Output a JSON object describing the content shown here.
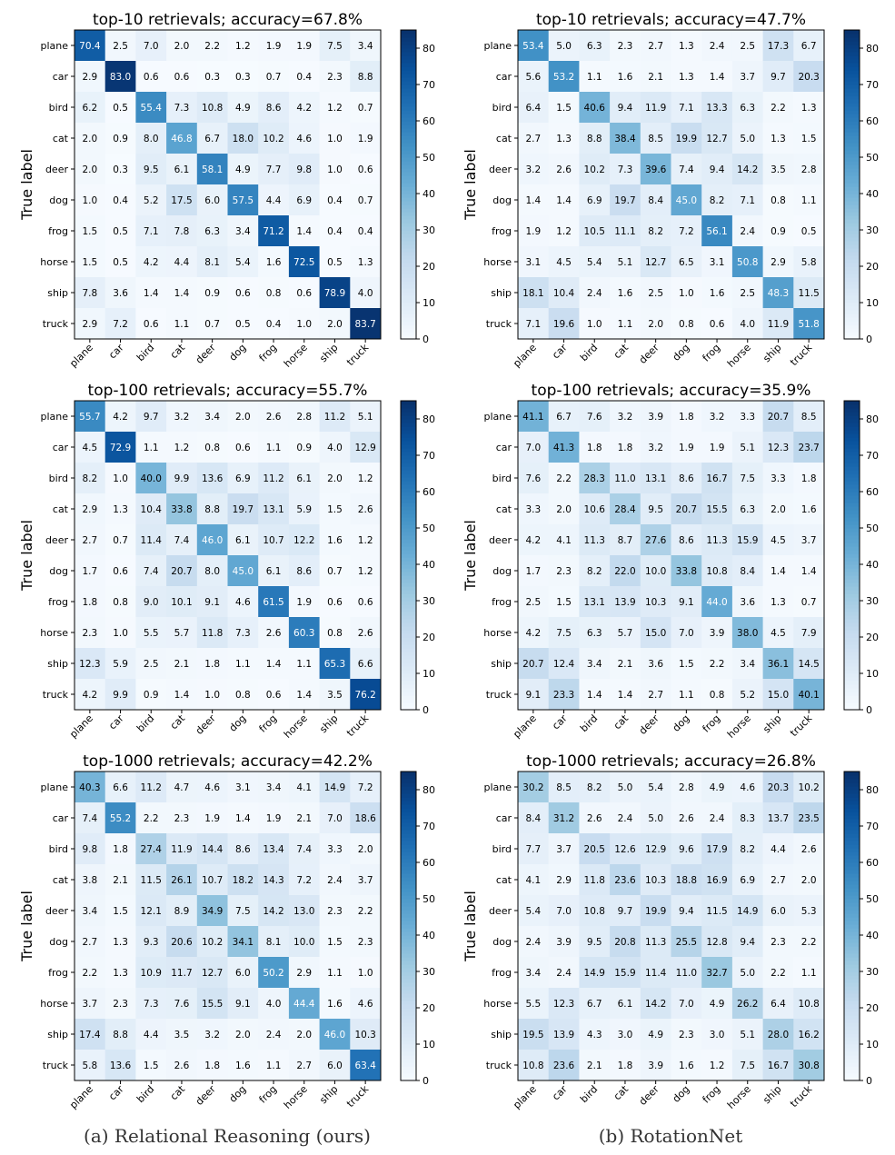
{
  "labels": [
    "plane",
    "car",
    "bird",
    "cat",
    "deer",
    "dog",
    "frog",
    "horse",
    "ship",
    "truck"
  ],
  "ylabel": "True label",
  "colorbar": {
    "min": 0,
    "max": 85,
    "ticks": [
      0,
      10,
      20,
      30,
      40,
      50,
      60,
      70,
      80
    ]
  },
  "colormap": [
    "#f7fbff",
    "#deebf7",
    "#c6dbef",
    "#9ecae1",
    "#6baed6",
    "#4292c6",
    "#2171b5",
    "#08519c",
    "#08306b"
  ],
  "captions": {
    "a": "(a) Relational Reasoning (ours)",
    "b": "(b) RotationNet"
  },
  "chart_data": [
    {
      "type": "heatmap",
      "title": "top-10 retrievals; accuracy=67.8%",
      "rows": [
        [
          70.4,
          2.5,
          7.0,
          2.0,
          2.2,
          1.2,
          1.9,
          1.9,
          7.5,
          3.4
        ],
        [
          2.9,
          83.0,
          0.6,
          0.6,
          0.3,
          0.3,
          0.7,
          0.4,
          2.3,
          8.8
        ],
        [
          6.2,
          0.5,
          55.4,
          7.3,
          10.8,
          4.9,
          8.6,
          4.2,
          1.2,
          0.7
        ],
        [
          2.0,
          0.9,
          8.0,
          46.8,
          6.7,
          18.0,
          10.2,
          4.6,
          1.0,
          1.9
        ],
        [
          2.0,
          0.3,
          9.5,
          6.1,
          58.1,
          4.9,
          7.7,
          9.8,
          1.0,
          0.6
        ],
        [
          1.0,
          0.4,
          5.2,
          17.5,
          6.0,
          57.5,
          4.4,
          6.9,
          0.4,
          0.7
        ],
        [
          1.5,
          0.5,
          7.1,
          7.8,
          6.3,
          3.4,
          71.2,
          1.4,
          0.4,
          0.4
        ],
        [
          1.5,
          0.5,
          4.2,
          4.4,
          8.1,
          5.4,
          1.6,
          72.5,
          0.5,
          1.3
        ],
        [
          7.8,
          3.6,
          1.4,
          1.4,
          0.9,
          0.6,
          0.8,
          0.6,
          78.9,
          4.0
        ],
        [
          2.9,
          7.2,
          0.6,
          1.1,
          0.7,
          0.5,
          0.4,
          1.0,
          2.0,
          83.7
        ]
      ]
    },
    {
      "type": "heatmap",
      "title": "top-10 retrievals; accuracy=47.7%",
      "rows": [
        [
          53.4,
          5.0,
          6.3,
          2.3,
          2.7,
          1.3,
          2.4,
          2.5,
          17.3,
          6.7
        ],
        [
          5.6,
          53.2,
          1.1,
          1.6,
          2.1,
          1.3,
          1.4,
          3.7,
          9.7,
          20.3
        ],
        [
          6.4,
          1.5,
          40.6,
          9.4,
          11.9,
          7.1,
          13.3,
          6.3,
          2.2,
          1.3
        ],
        [
          2.7,
          1.3,
          8.8,
          38.4,
          8.5,
          19.9,
          12.7,
          5.0,
          1.3,
          1.5
        ],
        [
          3.2,
          2.6,
          10.2,
          7.3,
          39.6,
          7.4,
          9.4,
          14.2,
          3.5,
          2.8
        ],
        [
          1.4,
          1.4,
          6.9,
          19.7,
          8.4,
          45.0,
          8.2,
          7.1,
          0.8,
          1.1
        ],
        [
          1.9,
          1.2,
          10.5,
          11.1,
          8.2,
          7.2,
          56.1,
          2.4,
          0.9,
          0.5
        ],
        [
          3.1,
          4.5,
          5.4,
          5.1,
          12.7,
          6.5,
          3.1,
          50.8,
          2.9,
          5.8
        ],
        [
          18.1,
          10.4,
          2.4,
          1.6,
          2.5,
          1.0,
          1.6,
          2.5,
          48.3,
          11.5
        ],
        [
          7.1,
          19.6,
          1.0,
          1.1,
          2.0,
          0.8,
          0.6,
          4.0,
          11.9,
          51.8
        ]
      ]
    },
    {
      "type": "heatmap",
      "title": "top-100 retrievals; accuracy=55.7%",
      "rows": [
        [
          55.7,
          4.2,
          9.7,
          3.2,
          3.4,
          2.0,
          2.6,
          2.8,
          11.2,
          5.1
        ],
        [
          4.5,
          72.9,
          1.1,
          1.2,
          0.8,
          0.6,
          1.1,
          0.9,
          4.0,
          12.9
        ],
        [
          8.2,
          1.0,
          40.0,
          9.9,
          13.6,
          6.9,
          11.2,
          6.1,
          2.0,
          1.2
        ],
        [
          2.9,
          1.3,
          10.4,
          33.8,
          8.8,
          19.7,
          13.1,
          5.9,
          1.5,
          2.6
        ],
        [
          2.7,
          0.7,
          11.4,
          7.4,
          46.0,
          6.1,
          10.7,
          12.2,
          1.6,
          1.2
        ],
        [
          1.7,
          0.6,
          7.4,
          20.7,
          8.0,
          45.0,
          6.1,
          8.6,
          0.7,
          1.2
        ],
        [
          1.8,
          0.8,
          9.0,
          10.1,
          9.1,
          4.6,
          61.5,
          1.9,
          0.6,
          0.6
        ],
        [
          2.3,
          1.0,
          5.5,
          5.7,
          11.8,
          7.3,
          2.6,
          60.3,
          0.8,
          2.6
        ],
        [
          12.3,
          5.9,
          2.5,
          2.1,
          1.8,
          1.1,
          1.4,
          1.1,
          65.3,
          6.6
        ],
        [
          4.2,
          9.9,
          0.9,
          1.4,
          1.0,
          0.8,
          0.6,
          1.4,
          3.5,
          76.2
        ]
      ]
    },
    {
      "type": "heatmap",
      "title": "top-100 retrievals; accuracy=35.9%",
      "rows": [
        [
          41.1,
          6.7,
          7.6,
          3.2,
          3.9,
          1.8,
          3.2,
          3.3,
          20.7,
          8.5
        ],
        [
          7.0,
          41.3,
          1.8,
          1.8,
          3.2,
          1.9,
          1.9,
          5.1,
          12.3,
          23.7
        ],
        [
          7.6,
          2.2,
          28.3,
          11.0,
          13.1,
          8.6,
          16.7,
          7.5,
          3.3,
          1.8
        ],
        [
          3.3,
          2.0,
          10.6,
          28.4,
          9.5,
          20.7,
          15.5,
          6.3,
          2.0,
          1.6
        ],
        [
          4.2,
          4.1,
          11.3,
          8.7,
          27.6,
          8.6,
          11.3,
          15.9,
          4.5,
          3.7
        ],
        [
          1.7,
          2.3,
          8.2,
          22.0,
          10.0,
          33.8,
          10.8,
          8.4,
          1.4,
          1.4
        ],
        [
          2.5,
          1.5,
          13.1,
          13.9,
          10.3,
          9.1,
          44.0,
          3.6,
          1.3,
          0.7
        ],
        [
          4.2,
          7.5,
          6.3,
          5.7,
          15.0,
          7.0,
          3.9,
          38.0,
          4.5,
          7.9
        ],
        [
          20.7,
          12.4,
          3.4,
          2.1,
          3.6,
          1.5,
          2.2,
          3.4,
          36.1,
          14.5
        ],
        [
          9.1,
          23.3,
          1.4,
          1.4,
          2.7,
          1.1,
          0.8,
          5.2,
          15.0,
          40.1
        ]
      ]
    },
    {
      "type": "heatmap",
      "title": "top-1000 retrievals; accuracy=42.2%",
      "rows": [
        [
          40.3,
          6.6,
          11.2,
          4.7,
          4.6,
          3.1,
          3.4,
          4.1,
          14.9,
          7.2
        ],
        [
          7.4,
          55.2,
          2.2,
          2.3,
          1.9,
          1.4,
          1.9,
          2.1,
          7.0,
          18.6
        ],
        [
          9.8,
          1.8,
          27.4,
          11.9,
          14.4,
          8.6,
          13.4,
          7.4,
          3.3,
          2.0
        ],
        [
          3.8,
          2.1,
          11.5,
          26.1,
          10.7,
          18.2,
          14.3,
          7.2,
          2.4,
          3.7
        ],
        [
          3.4,
          1.5,
          12.1,
          8.9,
          34.9,
          7.5,
          14.2,
          13.0,
          2.3,
          2.2
        ],
        [
          2.7,
          1.3,
          9.3,
          20.6,
          10.2,
          34.1,
          8.1,
          10.0,
          1.5,
          2.3
        ],
        [
          2.2,
          1.3,
          10.9,
          11.7,
          12.7,
          6.0,
          50.2,
          2.9,
          1.1,
          1.0
        ],
        [
          3.7,
          2.3,
          7.3,
          7.6,
          15.5,
          9.1,
          4.0,
          44.4,
          1.6,
          4.6
        ],
        [
          17.4,
          8.8,
          4.4,
          3.5,
          3.2,
          2.0,
          2.4,
          2.0,
          46.0,
          10.3
        ],
        [
          5.8,
          13.6,
          1.5,
          2.6,
          1.8,
          1.6,
          1.1,
          2.7,
          6.0,
          63.4
        ]
      ]
    },
    {
      "type": "heatmap",
      "title": "top-1000 retrievals; accuracy=26.8%",
      "rows": [
        [
          30.2,
          8.5,
          8.2,
          5.0,
          5.4,
          2.8,
          4.9,
          4.6,
          20.3,
          10.2
        ],
        [
          8.4,
          31.2,
          2.6,
          2.4,
          5.0,
          2.6,
          2.4,
          8.3,
          13.7,
          23.5
        ],
        [
          7.7,
          3.7,
          20.5,
          12.6,
          12.9,
          9.6,
          17.9,
          8.2,
          4.4,
          2.6
        ],
        [
          4.1,
          2.9,
          11.8,
          23.6,
          10.3,
          18.8,
          16.9,
          6.9,
          2.7,
          2.0
        ],
        [
          5.4,
          7.0,
          10.8,
          9.7,
          19.9,
          9.4,
          11.5,
          14.9,
          6.0,
          5.3
        ],
        [
          2.4,
          3.9,
          9.5,
          20.8,
          11.3,
          25.5,
          12.8,
          9.4,
          2.3,
          2.2
        ],
        [
          3.4,
          2.4,
          14.9,
          15.9,
          11.4,
          11.0,
          32.7,
          5.0,
          2.2,
          1.1
        ],
        [
          5.5,
          12.3,
          6.7,
          6.1,
          14.2,
          7.0,
          4.9,
          26.2,
          6.4,
          10.8
        ],
        [
          19.5,
          13.9,
          4.3,
          3.0,
          4.9,
          2.3,
          3.0,
          5.1,
          28.0,
          16.2
        ],
        [
          10.8,
          23.6,
          2.1,
          1.8,
          3.9,
          1.6,
          1.2,
          7.5,
          16.7,
          30.8
        ]
      ]
    }
  ]
}
